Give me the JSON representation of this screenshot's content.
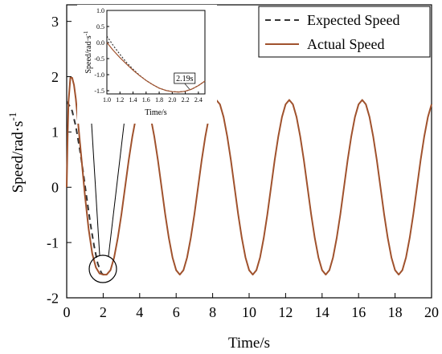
{
  "chart_data": [
    {
      "type": "line",
      "title": "",
      "xlabel": "Time/s",
      "ylabel": "Speed/rad·s",
      "ylabel_superscript": "-1",
      "xlim": [
        0,
        20
      ],
      "ylim": [
        -2,
        3.3
      ],
      "xticks": [
        0,
        2,
        4,
        6,
        8,
        10,
        12,
        14,
        16,
        18,
        20
      ],
      "yticks": [
        -2,
        -1,
        0,
        1,
        2,
        3
      ],
      "xtick_labels": [
        "0",
        "2",
        "4",
        "6",
        "8",
        "10",
        "12",
        "14",
        "16",
        "18",
        "20"
      ],
      "ytick_labels": [
        "-2",
        "-1",
        "0",
        "1",
        "2",
        "3"
      ],
      "grid": false,
      "legend_position": "top-right",
      "series": [
        {
          "name": "Expected Speed",
          "style": "dashed",
          "color": "#333333",
          "x": [
            0,
            0.1,
            0.2,
            0.3,
            0.5,
            0.7,
            0.9,
            1.1,
            1.3,
            1.5,
            1.7,
            1.9,
            2.0,
            2.1
          ],
          "y": [
            1.55,
            1.5,
            1.45,
            1.38,
            1.1,
            0.72,
            0.28,
            -0.2,
            -0.66,
            -1.06,
            -1.38,
            -1.55,
            -1.58,
            -1.57
          ]
        },
        {
          "name": "Actual Speed",
          "style": "solid",
          "color": "#a0522d",
          "x": [
            0,
            0.05,
            0.1,
            0.2,
            0.3,
            0.4,
            0.5,
            0.6,
            0.8,
            1.0,
            1.2,
            1.4,
            1.6,
            1.8,
            2.0,
            2.19,
            2.4,
            2.6,
            2.8,
            3.0,
            3.2,
            3.4,
            3.6,
            3.8,
            4.0,
            4.2,
            4.4,
            4.6,
            4.8,
            5.0,
            5.2,
            5.4,
            5.6,
            5.8,
            6.0,
            6.2,
            6.4,
            6.6,
            6.8,
            7.0,
            7.2,
            7.4,
            7.6,
            7.8,
            8.0,
            8.2,
            8.4,
            8.6,
            8.8,
            9.0,
            9.2,
            9.4,
            9.6,
            9.8,
            10.0,
            10.2,
            10.4,
            10.6,
            10.8,
            11.0,
            11.2,
            11.4,
            11.6,
            11.8,
            12.0,
            12.2,
            12.4,
            12.6,
            12.8,
            13.0,
            13.2,
            13.4,
            13.6,
            13.8,
            14.0,
            14.2,
            14.4,
            14.6,
            14.8,
            15.0,
            15.2,
            15.4,
            15.6,
            15.8,
            16.0,
            16.2,
            16.4,
            16.6,
            16.8,
            17.0,
            17.2,
            17.4,
            17.6,
            17.8,
            18.0,
            18.2,
            18.4,
            18.6,
            18.8,
            19.0,
            19.2,
            19.4,
            19.6,
            19.8,
            20.0
          ],
          "y": [
            0.0,
            0.9,
            1.55,
            1.98,
            1.98,
            1.85,
            1.6,
            1.25,
            0.55,
            -0.15,
            -0.75,
            -1.2,
            -1.45,
            -1.56,
            -1.58,
            -1.58,
            -1.5,
            -1.27,
            -0.92,
            -0.49,
            0.0,
            0.49,
            0.92,
            1.27,
            1.5,
            1.58,
            1.5,
            1.27,
            0.92,
            0.49,
            0.0,
            -0.49,
            -0.92,
            -1.27,
            -1.5,
            -1.58,
            -1.5,
            -1.27,
            -0.92,
            -0.49,
            0.0,
            0.49,
            0.92,
            1.27,
            1.5,
            1.58,
            1.5,
            1.27,
            0.92,
            0.49,
            0.0,
            -0.49,
            -0.92,
            -1.27,
            -1.5,
            -1.58,
            -1.5,
            -1.27,
            -0.92,
            -0.49,
            0.0,
            0.49,
            0.92,
            1.27,
            1.5,
            1.58,
            1.5,
            1.27,
            0.92,
            0.49,
            0.0,
            -0.49,
            -0.92,
            -1.27,
            -1.5,
            -1.58,
            -1.5,
            -1.27,
            -0.92,
            -0.49,
            0.0,
            0.49,
            0.92,
            1.27,
            1.5,
            1.58,
            1.5,
            1.27,
            0.92,
            0.49,
            0.0,
            -0.49,
            -0.92,
            -1.27,
            -1.5,
            -1.58,
            -1.5,
            -1.27,
            -0.92,
            -0.49,
            0.0,
            0.49,
            0.92,
            1.27,
            1.5
          ]
        }
      ]
    },
    {
      "type": "line",
      "title": "",
      "xlabel": "Time/s",
      "ylabel": "Speed/rad·s",
      "ylabel_superscript": "-1",
      "xlim": [
        1.0,
        2.5
      ],
      "ylim": [
        -1.6,
        1.0
      ],
      "xticks": [
        1.0,
        1.2,
        1.4,
        1.6,
        1.8,
        2.0,
        2.2,
        2.4
      ],
      "yticks": [
        -1.5,
        -1.0,
        -0.5,
        0.0,
        0.5,
        1.0
      ],
      "xtick_labels": [
        "1.0",
        "1.2",
        "1.4",
        "1.6",
        "1.8",
        "2.0",
        "2.2",
        "2.4"
      ],
      "ytick_labels": [
        "-1.5",
        "-1.0",
        "-0.5",
        "0.0",
        "0.5",
        "1.0"
      ],
      "grid": false,
      "annotation": "2.19s",
      "annotation_x": 2.19,
      "series": [
        {
          "name": "Expected Speed",
          "style": "dashed",
          "color": "#333333",
          "x": [
            1.0,
            1.1,
            1.2,
            1.3,
            1.4,
            1.5,
            1.6,
            1.7,
            1.8,
            1.9,
            2.0,
            2.1,
            2.19,
            2.3,
            2.4,
            2.5
          ],
          "y": [
            0.2,
            -0.1,
            -0.37,
            -0.62,
            -0.83,
            -1.02,
            -1.18,
            -1.31,
            -1.42,
            -1.49,
            -1.53,
            -1.54,
            -1.52,
            -1.45,
            -1.34,
            -1.2
          ]
        },
        {
          "name": "Actual Speed",
          "style": "solid",
          "color": "#a0522d",
          "x": [
            1.0,
            1.1,
            1.2,
            1.3,
            1.4,
            1.5,
            1.6,
            1.7,
            1.8,
            1.9,
            2.0,
            2.1,
            2.19,
            2.3,
            2.4,
            2.5
          ],
          "y": [
            0.0,
            -0.25,
            -0.47,
            -0.67,
            -0.86,
            -1.03,
            -1.18,
            -1.31,
            -1.42,
            -1.49,
            -1.53,
            -1.54,
            -1.52,
            -1.45,
            -1.34,
            -1.2
          ]
        }
      ]
    }
  ],
  "colors": {
    "actual": "#a0522d",
    "expected": "#333333",
    "axis": "#000000"
  }
}
